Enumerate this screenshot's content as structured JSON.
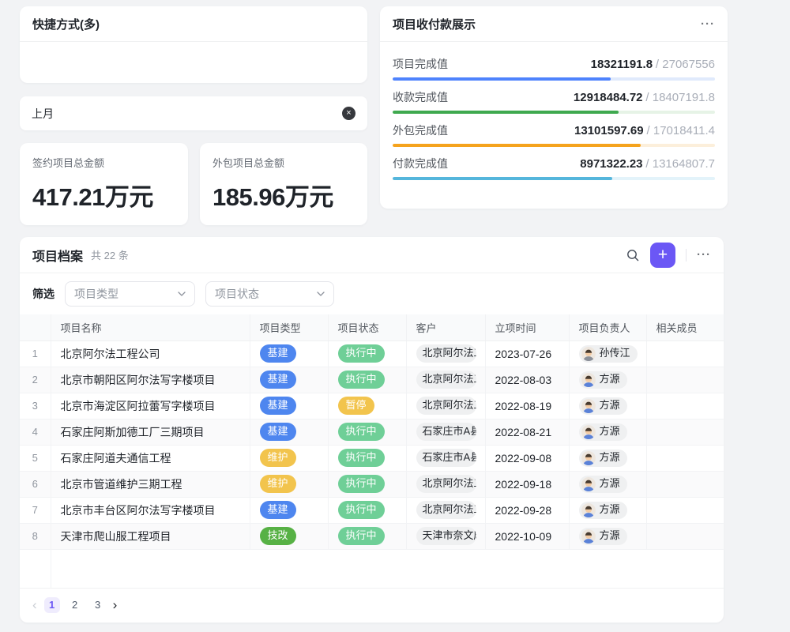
{
  "canvas": {
    "bg": "#F2F3F5"
  },
  "shortcut_card": {
    "title": "快捷方式(多)"
  },
  "date_chip": {
    "label": "上月",
    "close_icon": "×"
  },
  "metric_cards": [
    {
      "label": "签约项目总金额",
      "value": "417.21万元"
    },
    {
      "label": "外包项目总金额",
      "value": "185.96万元"
    }
  ],
  "payment_card": {
    "title": "项目收付款展示",
    "more_icon": "···",
    "rows": [
      {
        "label": "项目完成值",
        "value": "18321191.8",
        "total": "27067556",
        "percent": 67.7,
        "color": "#4E83FD",
        "track": "#E0EAFC"
      },
      {
        "label": "收款完成值",
        "value": "12918484.72",
        "total": "18407191.8",
        "percent": 70.2,
        "color": "#3FA94F",
        "track": "#E6F3E6"
      },
      {
        "label": "外包完成值",
        "value": "13101597.69",
        "total": "17018411.4",
        "percent": 77.0,
        "color": "#F5A31D",
        "track": "#FCEFDB"
      },
      {
        "label": "付款完成值",
        "value": "8971322.23",
        "total": "13164807.7",
        "percent": 68.1,
        "color": "#55B6DC",
        "track": "#E3F3FA"
      }
    ]
  },
  "table_card": {
    "title": "项目档案",
    "count_text": "共 22 条",
    "search_icon": "magnifier",
    "add_icon": "+",
    "add_button_color": "#6B57F5",
    "more_icon": "···",
    "filter_label": "筛选",
    "selects": [
      {
        "placeholder": "项目类型"
      },
      {
        "placeholder": "项目状态"
      }
    ],
    "columns": [
      "",
      "项目名称",
      "项目类型",
      "项目状态",
      "客户",
      "立项时间",
      "项目负责人",
      "相关成员"
    ],
    "tag_colors": {
      "基建": "#4E86EF",
      "维护": "#F2C44D",
      "技改": "#57B145",
      "执行中": "#6FCF97",
      "暂停": "#F2C44D"
    },
    "avatar_colors": {
      "孙传江": "#8A8F98",
      "方源": "#5B82D8"
    },
    "rows": [
      {
        "index": "1",
        "name": "北京阿尔法工程公司",
        "type": "基建",
        "status": "执行中",
        "customer": "北京阿尔法工程",
        "date": "2023-07-26",
        "owner": "孙传江"
      },
      {
        "index": "2",
        "name": "北京市朝阳区阿尔法写字楼项目",
        "type": "基建",
        "status": "执行中",
        "customer": "北京阿尔法工程",
        "date": "2022-08-03",
        "owner": "方源"
      },
      {
        "index": "3",
        "name": "北京市海淀区阿拉蕾写字楼项目",
        "type": "基建",
        "status": "暂停",
        "customer": "北京阿尔法工程",
        "date": "2022-08-19",
        "owner": "方源"
      },
      {
        "index": "4",
        "name": "石家庄阿斯加德工厂三期项目",
        "type": "基建",
        "status": "执行中",
        "customer": "石家庄市A县建",
        "date": "2022-08-21",
        "owner": "方源"
      },
      {
        "index": "5",
        "name": "石家庄阿道夫通信工程",
        "type": "维护",
        "status": "执行中",
        "customer": "石家庄市A县建",
        "date": "2022-09-08",
        "owner": "方源"
      },
      {
        "index": "6",
        "name": "北京市管道维护三期工程",
        "type": "维护",
        "status": "执行中",
        "customer": "北京阿尔法工程",
        "date": "2022-09-18",
        "owner": "方源"
      },
      {
        "index": "7",
        "name": "北京市丰台区阿尔法写字楼项目",
        "type": "基建",
        "status": "执行中",
        "customer": "北京阿尔法工程",
        "date": "2022-09-28",
        "owner": "方源"
      },
      {
        "index": "8",
        "name": "天津市爬山服工程项目",
        "type": "技改",
        "status": "执行中",
        "customer": "天津市奈文摩尔",
        "date": "2022-10-09",
        "owner": "方源"
      }
    ],
    "pagination": {
      "prev_icon": "‹",
      "pages": [
        "1",
        "2",
        "3"
      ],
      "active_page": "1",
      "next_icon": "›"
    }
  }
}
